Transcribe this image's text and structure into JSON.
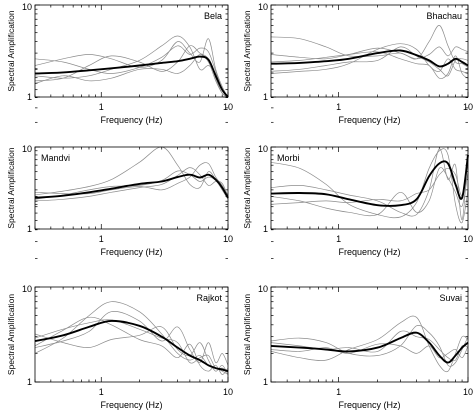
{
  "chart_data": [
    {
      "type": "line",
      "station": "Bela",
      "xlabel": "Frequency (Hz)",
      "ylabel": "Spectral Amplification",
      "xscale": "log",
      "yscale": "log",
      "xlim": [
        0.3,
        10
      ],
      "ylim": [
        1,
        10
      ],
      "x_ticks": [
        "1",
        "10"
      ],
      "y_ticks": [
        "1",
        "10"
      ],
      "mean_series": {
        "x": [
          0.3,
          0.5,
          0.8,
          1.2,
          2,
          3,
          4,
          5,
          6,
          7,
          8,
          9,
          10
        ],
        "y": [
          1.8,
          1.85,
          1.95,
          2.05,
          2.2,
          2.35,
          2.45,
          2.6,
          2.75,
          2.55,
          1.7,
          1.2,
          1.0
        ]
      },
      "station_curves": [
        {
          "x": [
            0.3,
            0.5,
            0.8,
            1.2,
            2,
            3,
            4,
            5,
            6,
            7,
            8,
            9,
            10
          ],
          "y": [
            2.2,
            2.6,
            2.9,
            2.6,
            2.1,
            2.5,
            4.0,
            3.0,
            2.4,
            4.3,
            2.0,
            1.3,
            1.0
          ]
        },
        {
          "x": [
            0.3,
            0.5,
            0.8,
            1.2,
            2,
            3,
            4,
            5,
            6,
            7,
            8,
            9,
            10
          ],
          "y": [
            1.5,
            1.6,
            2.2,
            2.8,
            2.4,
            1.9,
            2.4,
            3.6,
            3.0,
            2.6,
            1.6,
            1.1,
            1.0
          ]
        },
        {
          "x": [
            0.3,
            0.5,
            0.8,
            1.2,
            2,
            3,
            4,
            5,
            6,
            7,
            8,
            9,
            10
          ],
          "y": [
            2.6,
            2.4,
            2.0,
            1.8,
            2.1,
            2.7,
            3.6,
            2.9,
            3.4,
            3.1,
            1.9,
            1.2,
            1.0
          ]
        },
        {
          "x": [
            0.3,
            0.5,
            0.8,
            1.2,
            2,
            3,
            4,
            5,
            6,
            7,
            8,
            9,
            10
          ],
          "y": [
            1.7,
            1.6,
            1.7,
            2.0,
            2.5,
            3.6,
            4.6,
            3.5,
            2.0,
            2.2,
            1.8,
            1.2,
            1.0
          ]
        },
        {
          "x": [
            0.3,
            0.5,
            0.8,
            1.2,
            2,
            3,
            4,
            5,
            6,
            7,
            8,
            9,
            10
          ],
          "y": [
            1.4,
            1.7,
            1.5,
            1.6,
            2.0,
            2.0,
            1.8,
            2.2,
            2.9,
            2.4,
            1.5,
            1.1,
            1.0
          ]
        }
      ]
    },
    {
      "type": "line",
      "station": "Bhachau",
      "xlabel": "Frequency (Hz)",
      "ylabel": "Spectral Amplification",
      "xscale": "log",
      "yscale": "log",
      "xlim": [
        0.3,
        10
      ],
      "ylim": [
        1,
        10
      ],
      "x_ticks": [
        "1",
        "10"
      ],
      "y_ticks": [
        "1",
        "10"
      ],
      "mean_series": {
        "x": [
          0.3,
          0.5,
          0.8,
          1.2,
          2,
          3,
          4,
          5,
          6,
          7,
          8,
          9,
          10
        ],
        "y": [
          2.3,
          2.35,
          2.45,
          2.6,
          3.0,
          3.2,
          2.85,
          2.5,
          2.15,
          2.3,
          2.6,
          2.4,
          2.2
        ]
      },
      "station_curves": [
        {
          "x": [
            0.3,
            0.5,
            0.8,
            1.2,
            2,
            3,
            4,
            5,
            6,
            7,
            8,
            9,
            10
          ],
          "y": [
            4.5,
            4.3,
            3.5,
            2.8,
            2.8,
            3.0,
            2.6,
            4.0,
            6.0,
            3.6,
            2.4,
            2.3,
            2.1
          ]
        },
        {
          "x": [
            0.3,
            0.5,
            0.8,
            1.2,
            2,
            3,
            4,
            5,
            6,
            7,
            8,
            9,
            10
          ],
          "y": [
            2.4,
            2.5,
            2.7,
            2.9,
            3.1,
            2.6,
            2.3,
            2.2,
            1.6,
            1.8,
            2.8,
            1.8,
            1.6
          ]
        },
        {
          "x": [
            0.3,
            0.5,
            0.8,
            1.2,
            2,
            3,
            4,
            5,
            6,
            7,
            8,
            9,
            10
          ],
          "y": [
            1.8,
            1.9,
            2.0,
            2.3,
            3.3,
            3.8,
            3.3,
            2.2,
            1.9,
            2.6,
            2.0,
            1.9,
            1.8
          ]
        },
        {
          "x": [
            0.3,
            0.5,
            0.8,
            1.2,
            2,
            3,
            4,
            5,
            6,
            7,
            8,
            9,
            10
          ],
          "y": [
            2.9,
            2.7,
            2.6,
            2.9,
            3.4,
            3.0,
            2.6,
            2.9,
            3.5,
            2.8,
            3.5,
            3.3,
            3.1
          ]
        },
        {
          "x": [
            0.3,
            0.5,
            0.8,
            1.2,
            2,
            3,
            4,
            5,
            6,
            7,
            8,
            9,
            10
          ],
          "y": [
            1.9,
            2.0,
            2.2,
            2.4,
            2.5,
            3.5,
            2.8,
            2.4,
            2.0,
            1.7,
            2.5,
            2.6,
            2.5
          ]
        }
      ]
    },
    {
      "type": "line",
      "station": "Mandvi",
      "xlabel": "Frequency (Hz)",
      "ylabel": "Spectral Amplification",
      "xscale": "log",
      "yscale": "log",
      "xlim": [
        0.3,
        10
      ],
      "ylim": [
        1,
        10
      ],
      "x_ticks": [
        "1",
        "10"
      ],
      "y_ticks": [
        "1",
        "10"
      ],
      "mean_series": {
        "x": [
          0.3,
          0.5,
          0.8,
          1.2,
          2,
          3,
          4,
          5,
          6,
          7,
          8,
          9,
          10
        ],
        "y": [
          2.4,
          2.55,
          2.8,
          3.1,
          3.55,
          3.8,
          4.3,
          4.6,
          4.25,
          4.6,
          4.0,
          3.2,
          2.4
        ]
      },
      "station_curves": [
        {
          "x": [
            0.3,
            0.5,
            0.8,
            1.2,
            2,
            3,
            4,
            5,
            6,
            7,
            8,
            9,
            10
          ],
          "y": [
            2.6,
            2.9,
            3.3,
            4.0,
            6.5,
            10.0,
            6.0,
            3.5,
            3.2,
            5.0,
            4.0,
            3.0,
            2.4
          ]
        },
        {
          "x": [
            0.3,
            0.5,
            0.8,
            1.2,
            2,
            3,
            4,
            5,
            6,
            7,
            8,
            9,
            10
          ],
          "y": [
            2.2,
            2.3,
            2.5,
            2.8,
            3.2,
            3.5,
            4.5,
            5.6,
            4.6,
            3.4,
            3.8,
            3.6,
            2.5
          ]
        },
        {
          "x": [
            0.3,
            0.5,
            0.8,
            1.2,
            2,
            3,
            4,
            5,
            6,
            7,
            8,
            9,
            10
          ],
          "y": [
            2.8,
            2.7,
            2.7,
            3.0,
            3.3,
            3.0,
            3.6,
            4.3,
            6.0,
            6.3,
            4.3,
            3.4,
            2.6
          ]
        },
        {
          "x": [
            0.3,
            0.5,
            0.8,
            1.2,
            2,
            3,
            4,
            5,
            6,
            7,
            8,
            9,
            10
          ],
          "y": [
            2.3,
            2.6,
            3.0,
            3.3,
            3.4,
            3.9,
            5.1,
            4.6,
            3.8,
            4.3,
            3.9,
            3.0,
            2.3
          ]
        }
      ]
    },
    {
      "type": "line",
      "station": "Morbi",
      "xlabel": "Frequency (Hz)",
      "ylabel": "Spectral Amplification",
      "xscale": "log",
      "yscale": "log",
      "xlim": [
        0.3,
        10
      ],
      "ylim": [
        1,
        10
      ],
      "x_ticks": [
        "1",
        "10"
      ],
      "y_ticks": [
        "1",
        "10"
      ],
      "mean_series": {
        "x": [
          0.3,
          0.5,
          0.8,
          1.2,
          2,
          3,
          4,
          5,
          6,
          7,
          8,
          9,
          10
        ],
        "y": [
          2.7,
          2.75,
          2.65,
          2.3,
          1.95,
          1.95,
          2.3,
          4.4,
          6.3,
          6.3,
          3.5,
          2.4,
          8.0
        ]
      },
      "station_curves": [
        {
          "x": [
            0.3,
            0.5,
            0.8,
            1.2,
            2,
            3,
            4,
            5,
            6,
            7,
            8,
            9,
            10
          ],
          "y": [
            6.5,
            5.5,
            3.5,
            2.0,
            1.5,
            1.4,
            2.1,
            5.5,
            9.0,
            8.0,
            2.0,
            1.2,
            3.0
          ]
        },
        {
          "x": [
            0.3,
            0.5,
            0.8,
            1.2,
            2,
            3,
            4,
            5,
            6,
            7,
            8,
            9,
            10
          ],
          "y": [
            3.2,
            3.4,
            3.0,
            2.6,
            2.2,
            1.6,
            1.5,
            3.0,
            9.5,
            4.0,
            6.0,
            1.3,
            9.0
          ]
        },
        {
          "x": [
            0.3,
            0.5,
            0.8,
            1.2,
            2,
            3,
            4,
            5,
            6,
            7,
            8,
            9,
            10
          ],
          "y": [
            2.0,
            2.1,
            2.2,
            2.1,
            2.3,
            2.2,
            2.7,
            3.0,
            4.6,
            5.5,
            4.6,
            2.6,
            8.0
          ]
        },
        {
          "x": [
            0.3,
            0.5,
            0.8,
            1.2,
            2,
            3,
            4,
            5,
            6,
            7,
            8,
            9,
            10
          ],
          "y": [
            2.5,
            2.2,
            1.8,
            1.6,
            1.5,
            2.8,
            1.6,
            2.2,
            5.5,
            4.2,
            2.8,
            1.9,
            5.0
          ]
        }
      ]
    },
    {
      "type": "line",
      "station": "Rajkot",
      "xlabel": "Frequency (Hz)",
      "ylabel": "Spectral Amplification",
      "xscale": "log",
      "yscale": "log",
      "xlim": [
        0.3,
        10
      ],
      "ylim": [
        1,
        10
      ],
      "x_ticks": [
        "1",
        "10"
      ],
      "y_ticks": [
        "1",
        "10"
      ],
      "mean_series": {
        "x": [
          0.3,
          0.5,
          0.8,
          1.2,
          2,
          3,
          4,
          5,
          6,
          7,
          8,
          9,
          10
        ],
        "y": [
          2.7,
          3.1,
          3.8,
          4.4,
          3.9,
          3.0,
          2.3,
          1.9,
          1.7,
          1.5,
          1.4,
          1.35,
          1.3
        ]
      },
      "station_curves": [
        {
          "x": [
            0.3,
            0.5,
            0.8,
            1.2,
            2,
            3,
            4,
            5,
            6,
            7,
            8,
            9,
            10
          ],
          "y": [
            2.0,
            2.9,
            5.0,
            7.0,
            5.5,
            3.2,
            2.0,
            1.7,
            1.9,
            1.5,
            1.4,
            1.3,
            1.2
          ]
        },
        {
          "x": [
            0.3,
            0.5,
            0.8,
            1.2,
            2,
            3,
            4,
            5,
            6,
            7,
            8,
            9,
            10
          ],
          "y": [
            2.3,
            2.7,
            3.4,
            5.5,
            4.4,
            2.7,
            3.8,
            2.2,
            1.6,
            2.6,
            1.6,
            2.0,
            1.5
          ]
        },
        {
          "x": [
            0.3,
            0.5,
            0.8,
            1.2,
            2,
            3,
            4,
            5,
            6,
            7,
            8,
            9,
            10
          ],
          "y": [
            3.2,
            2.6,
            2.3,
            2.8,
            3.1,
            3.8,
            2.2,
            1.9,
            2.6,
            1.7,
            1.3,
            1.5,
            1.2
          ]
        },
        {
          "x": [
            0.3,
            0.5,
            0.8,
            1.2,
            2,
            3,
            4,
            5,
            6,
            7,
            8,
            9,
            10
          ],
          "y": [
            2.4,
            3.5,
            4.8,
            4.0,
            2.8,
            2.4,
            1.8,
            2.5,
            1.5,
            1.3,
            1.5,
            1.2,
            1.4
          ]
        },
        {
          "x": [
            0.3,
            0.5,
            0.8,
            1.2,
            2,
            3,
            4,
            5,
            6,
            7,
            8,
            9,
            10
          ],
          "y": [
            2.9,
            3.6,
            4.2,
            4.5,
            3.6,
            2.9,
            2.6,
            1.6,
            1.8,
            1.9,
            1.4,
            1.4,
            1.3
          ]
        }
      ]
    },
    {
      "type": "line",
      "station": "Suvai",
      "xlabel": "Frequency (Hz)",
      "ylabel": "Spectral Amplification",
      "xscale": "log",
      "yscale": "log",
      "xlim": [
        0.3,
        10
      ],
      "ylim": [
        1,
        10
      ],
      "x_ticks": [
        "1",
        "10"
      ],
      "y_ticks": [
        "1",
        "10"
      ],
      "mean_series": {
        "x": [
          0.3,
          0.5,
          0.8,
          1.2,
          2,
          3,
          4,
          5,
          6,
          7,
          8,
          9,
          10
        ],
        "y": [
          2.4,
          2.3,
          2.2,
          2.1,
          2.3,
          2.9,
          3.3,
          2.6,
          1.9,
          1.6,
          1.9,
          2.3,
          2.6
        ]
      },
      "station_curves": [
        {
          "x": [
            0.3,
            0.5,
            0.8,
            1.2,
            2,
            3,
            4,
            5,
            6,
            7,
            8,
            9,
            10
          ],
          "y": [
            2.1,
            1.8,
            1.7,
            2.2,
            2.8,
            4.2,
            4.8,
            2.4,
            1.5,
            1.3,
            2.0,
            3.0,
            2.8
          ]
        },
        {
          "x": [
            0.3,
            0.5,
            0.8,
            1.2,
            2,
            3,
            4,
            5,
            6,
            7,
            8,
            9,
            10
          ],
          "y": [
            2.7,
            2.9,
            2.6,
            2.0,
            1.9,
            2.4,
            3.9,
            3.3,
            2.4,
            1.5,
            1.6,
            2.2,
            3.0
          ]
        },
        {
          "x": [
            0.3,
            0.5,
            0.8,
            1.2,
            2,
            3,
            4,
            5,
            6,
            7,
            8,
            9,
            10
          ],
          "y": [
            2.2,
            2.1,
            2.3,
            2.0,
            2.5,
            2.4,
            2.0,
            2.4,
            1.8,
            2.0,
            2.2,
            1.8,
            2.4
          ]
        },
        {
          "x": [
            0.3,
            0.5,
            0.8,
            1.2,
            2,
            3,
            4,
            5,
            6,
            7,
            8,
            9,
            10
          ],
          "y": [
            2.6,
            2.4,
            2.2,
            2.3,
            2.1,
            3.4,
            3.0,
            2.8,
            2.2,
            1.8,
            1.7,
            2.4,
            2.3
          ]
        }
      ]
    }
  ]
}
